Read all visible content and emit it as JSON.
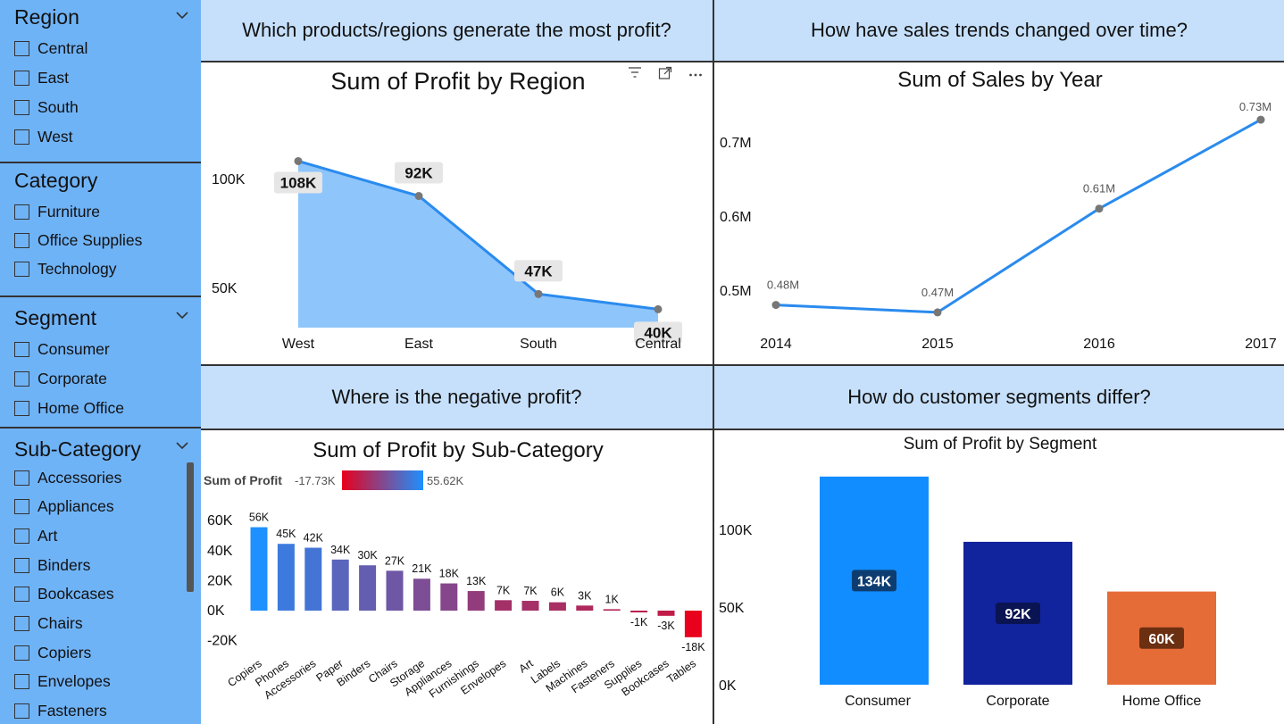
{
  "slicers": {
    "region": {
      "title": "Region",
      "items": [
        "Central",
        "East",
        "South",
        "West"
      ]
    },
    "category": {
      "title": "Category",
      "items": [
        "Furniture",
        "Office Supplies",
        "Technology"
      ]
    },
    "segment": {
      "title": "Segment",
      "items": [
        "Consumer",
        "Corporate",
        "Home Office"
      ]
    },
    "subcategory": {
      "title": "Sub-Category",
      "items": [
        "Accessories",
        "Appliances",
        "Art",
        "Binders",
        "Bookcases",
        "Chairs",
        "Copiers",
        "Envelopes",
        "Fasteners"
      ]
    }
  },
  "questions": {
    "q1": "Which products/regions generate the most profit?",
    "q2": "How have sales trends changed over time?",
    "q3": "Where is the negative profit?",
    "q4": "How do customer segments differ?"
  },
  "chart_data": [
    {
      "type": "area",
      "title": "Sum of Profit by Region",
      "categories": [
        "West",
        "East",
        "South",
        "Central"
      ],
      "values": [
        108000,
        92000,
        47000,
        40000
      ],
      "data_labels": [
        "108K",
        "92K",
        "47K",
        "40K"
      ],
      "yticks": [
        {
          "v": 50000,
          "label": "50K"
        },
        {
          "v": 100000,
          "label": "100K"
        }
      ],
      "ylim": [
        0,
        120000
      ],
      "color": "#8ec5fb",
      "line_color": "#2a8bee"
    },
    {
      "type": "line",
      "title": "Sum of Sales by Year",
      "categories": [
        "2014",
        "2015",
        "2016",
        "2017"
      ],
      "values": [
        0.48,
        0.47,
        0.61,
        0.73
      ],
      "data_labels": [
        "0.48M",
        "0.47M",
        "0.61M",
        "0.73M"
      ],
      "yticks": [
        {
          "v": 0.5,
          "label": "0.5M"
        },
        {
          "v": 0.6,
          "label": "0.6M"
        },
        {
          "v": 0.7,
          "label": "0.7M"
        }
      ],
      "line_color": "#2a8bee"
    },
    {
      "type": "bar",
      "title": "Sum of Profit by Sub-Category",
      "legend": {
        "label": "Sum of Profit",
        "min_label": "-17.73K",
        "max_label": "55.62K",
        "min_color": "#e8001c",
        "max_color": "#1e90ff"
      },
      "categories": [
        "Copiers",
        "Phones",
        "Accessories",
        "Paper",
        "Binders",
        "Chairs",
        "Storage",
        "Appliances",
        "Furnishings",
        "Envelopes",
        "Art",
        "Labels",
        "Machines",
        "Fasteners",
        "Supplies",
        "Bookcases",
        "Tables"
      ],
      "values": [
        55.62,
        44.52,
        41.94,
        34.05,
        30.22,
        26.59,
        21.28,
        18.14,
        13.06,
        6.96,
        6.53,
        5.55,
        3.38,
        0.95,
        -1.19,
        -3.47,
        -17.73
      ],
      "data_labels": [
        "56K",
        "45K",
        "42K",
        "34K",
        "30K",
        "27K",
        "21K",
        "18K",
        "13K",
        "7K",
        "7K",
        "6K",
        "3K",
        "1K",
        "-1K",
        "-3K",
        "-18K"
      ],
      "yticks": [
        {
          "v": -20,
          "label": "-20K"
        },
        {
          "v": 0,
          "label": "0K"
        },
        {
          "v": 20,
          "label": "20K"
        },
        {
          "v": 40,
          "label": "40K"
        },
        {
          "v": 60,
          "label": "60K"
        }
      ]
    },
    {
      "type": "bar",
      "title": "Sum of Profit by Segment",
      "categories": [
        "Consumer",
        "Corporate",
        "Home Office"
      ],
      "values": [
        134,
        92,
        60
      ],
      "data_labels": [
        "134K",
        "92K",
        "60K"
      ],
      "colors": [
        "#118dff",
        "#12239e",
        "#e66c37"
      ],
      "label_bg": [
        "#0d3d70",
        "#0a1452",
        "#6b2f12"
      ],
      "yticks": [
        {
          "v": 0,
          "label": "0K"
        },
        {
          "v": 50,
          "label": "50K"
        },
        {
          "v": 100,
          "label": "100K"
        }
      ]
    }
  ]
}
